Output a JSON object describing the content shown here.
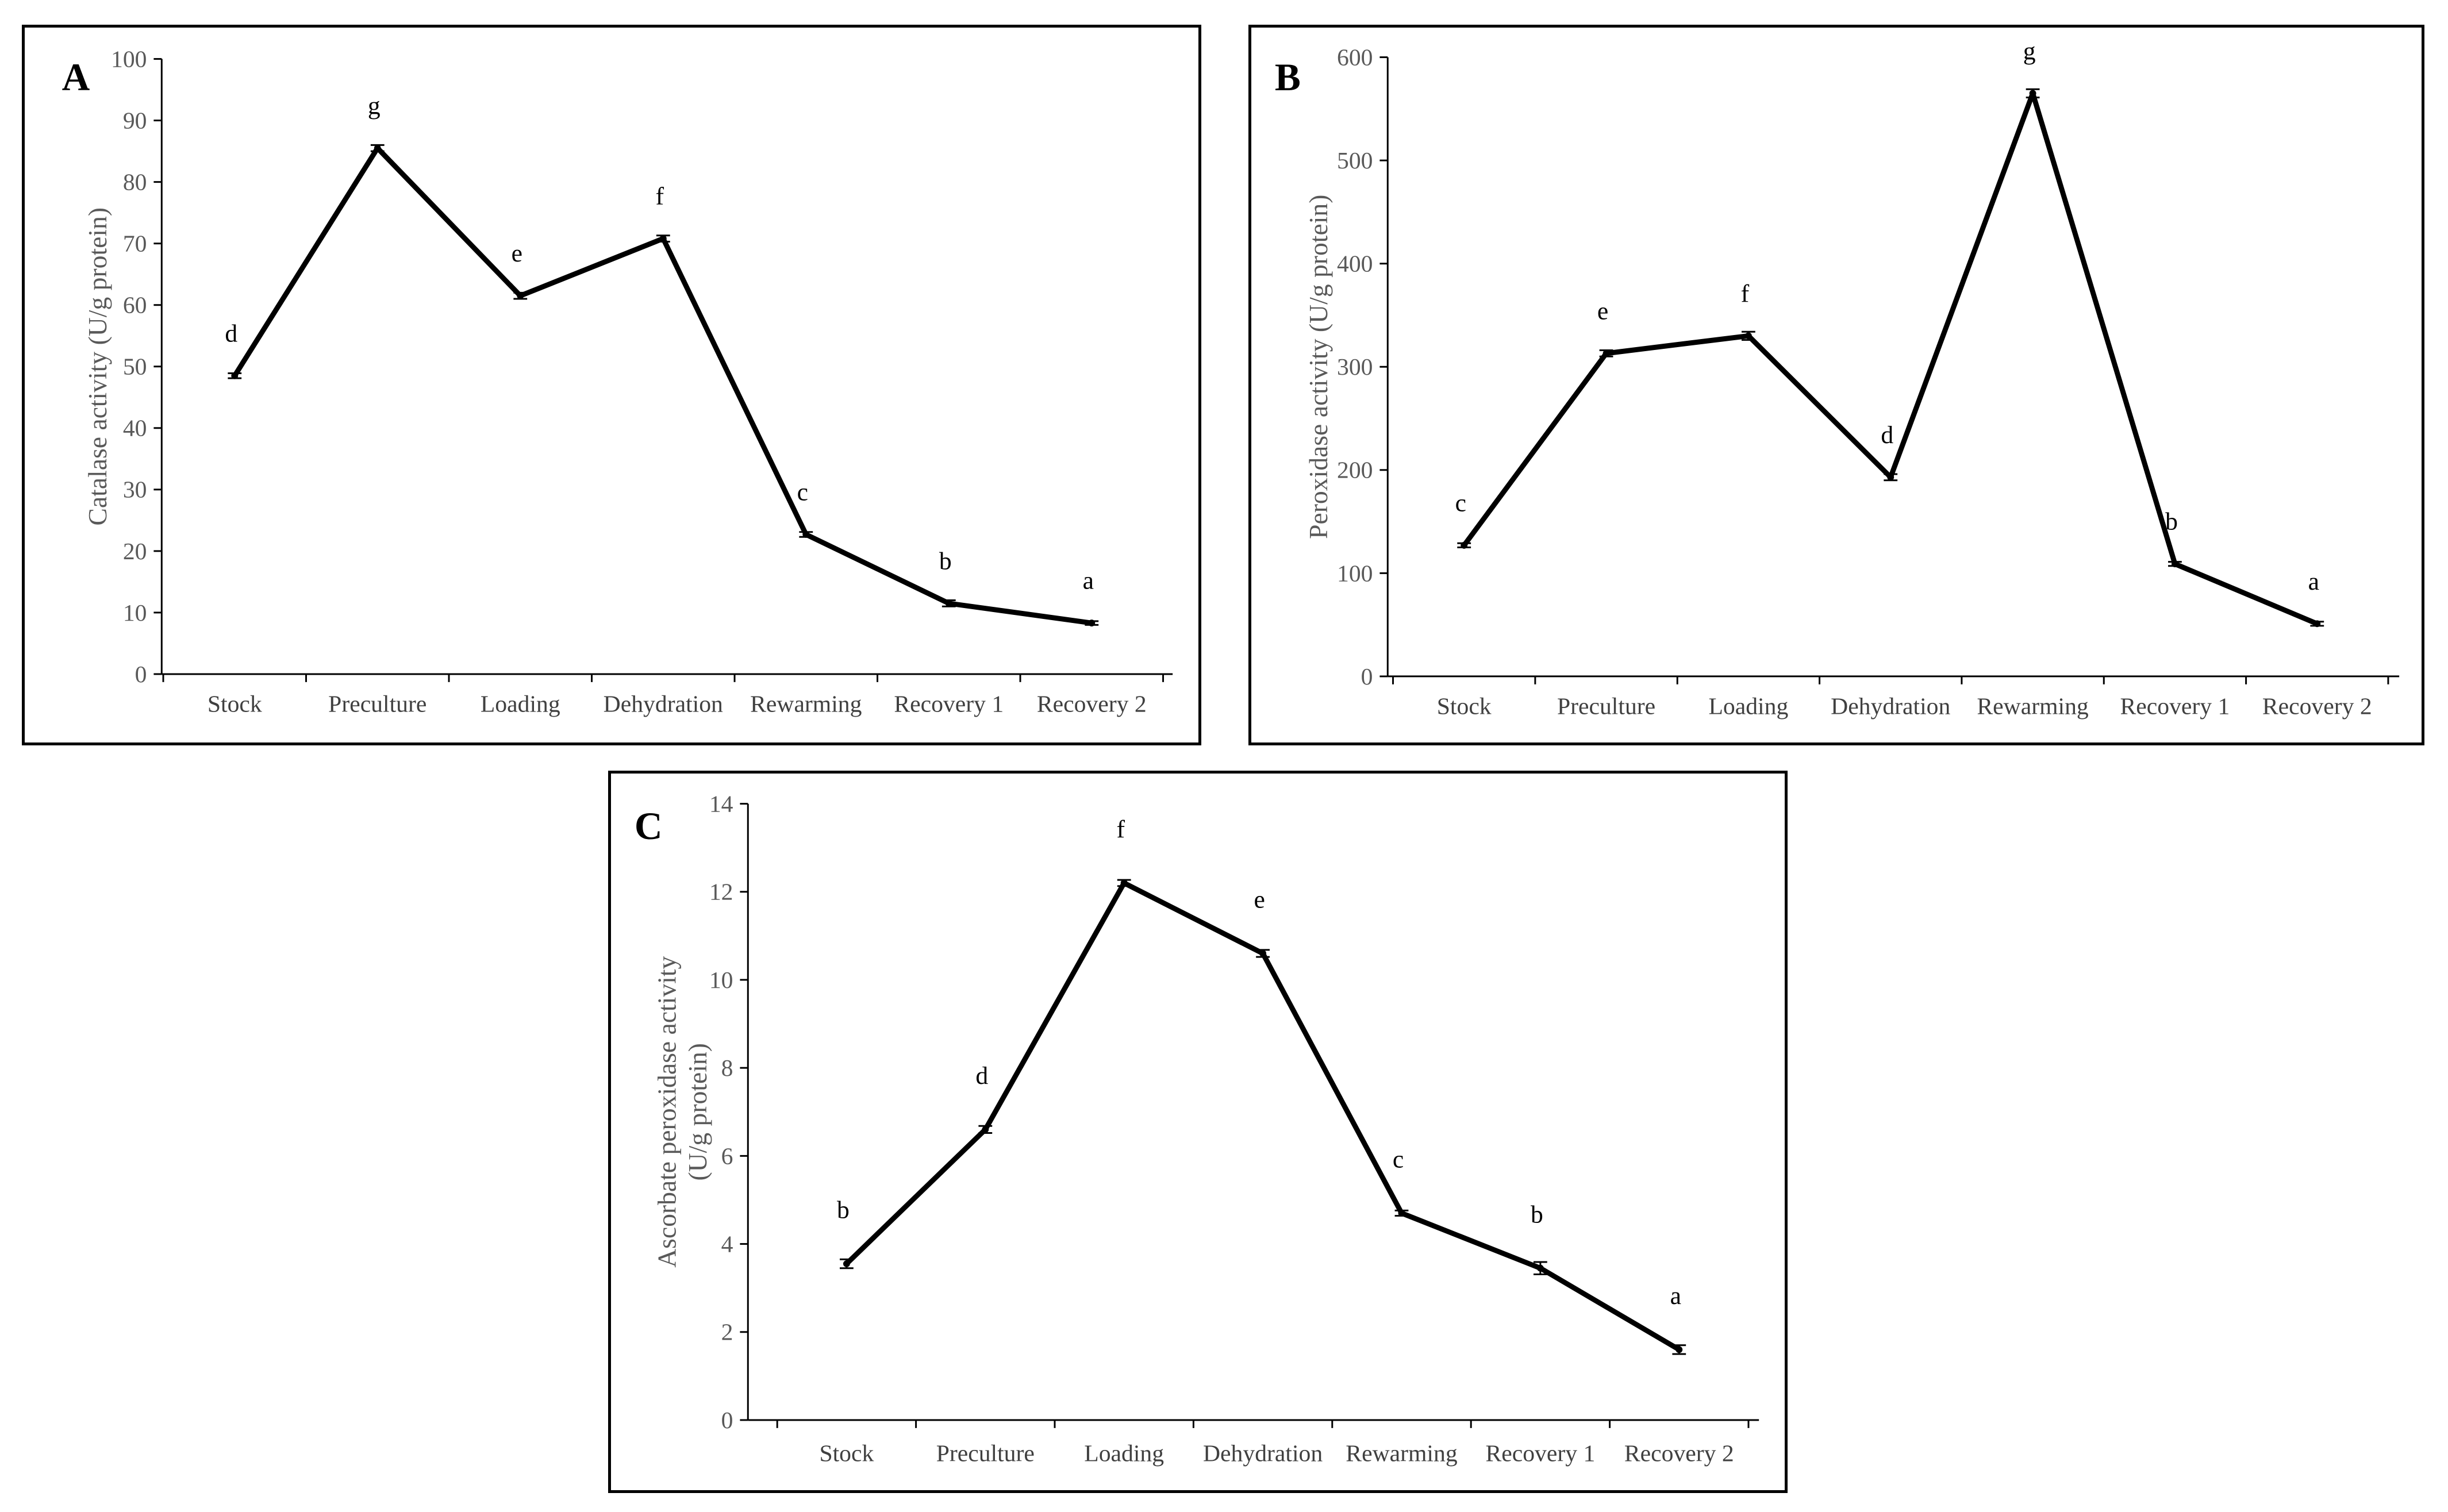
{
  "chart_data": [
    {
      "panel": "A",
      "type": "line",
      "ylabel": "Catalase activity (U/g protein)",
      "xlabel": "",
      "ylim": [
        0,
        100
      ],
      "ytick_step": 10,
      "yticks": [
        "0",
        "10",
        "20",
        "30",
        "40",
        "50",
        "60",
        "70",
        "80",
        "90",
        "100"
      ],
      "categories": [
        "Stock",
        "Preculture",
        "Loading",
        "Dehydration",
        "Rewarming",
        "Recovery 1",
        "Recovery 2"
      ],
      "values": [
        48.5,
        85.5,
        61.5,
        70.8,
        22.7,
        11.5,
        8.3
      ],
      "errors": [
        0.4,
        0.5,
        0.5,
        0.5,
        0.4,
        0.5,
        0.3
      ],
      "letters": [
        "d",
        "g",
        "e",
        "f",
        "c",
        "b",
        "a"
      ]
    },
    {
      "panel": "B",
      "type": "line",
      "ylabel": "Peroxidase activity (U/g protein)",
      "xlabel": "",
      "ylim": [
        0,
        600
      ],
      "ytick_step": 100,
      "yticks": [
        "0",
        "100",
        "200",
        "300",
        "400",
        "500",
        "600"
      ],
      "categories": [
        "Stock",
        "Preculture",
        "Loading",
        "Dehydration",
        "Rewarming",
        "Recovery 1",
        "Recovery 2"
      ],
      "values": [
        127,
        313,
        330,
        193,
        565,
        109,
        51
      ],
      "errors": [
        2,
        3,
        4,
        3,
        4,
        2,
        2
      ],
      "letters": [
        "c",
        "e",
        "f",
        "d",
        "g",
        "b",
        "a"
      ]
    },
    {
      "panel": "C",
      "type": "line",
      "ylabel_lines": [
        "Ascorbate peroxidase activity",
        "(U/g protein)"
      ],
      "xlabel": "",
      "ylim": [
        0,
        14
      ],
      "ytick_step": 2,
      "yticks": [
        "0",
        "2",
        "4",
        "6",
        "8",
        "10",
        "12",
        "14"
      ],
      "categories": [
        "Stock",
        "Preculture",
        "Loading",
        "Dehydration",
        "Rewarming",
        "Recovery 1",
        "Recovery 2"
      ],
      "values": [
        3.55,
        6.6,
        12.2,
        10.6,
        4.7,
        3.45,
        1.6
      ],
      "errors": [
        0.1,
        0.08,
        0.07,
        0.08,
        0.06,
        0.14,
        0.1
      ],
      "letters": [
        "b",
        "d",
        "f",
        "e",
        "c",
        "b",
        "a"
      ]
    }
  ]
}
